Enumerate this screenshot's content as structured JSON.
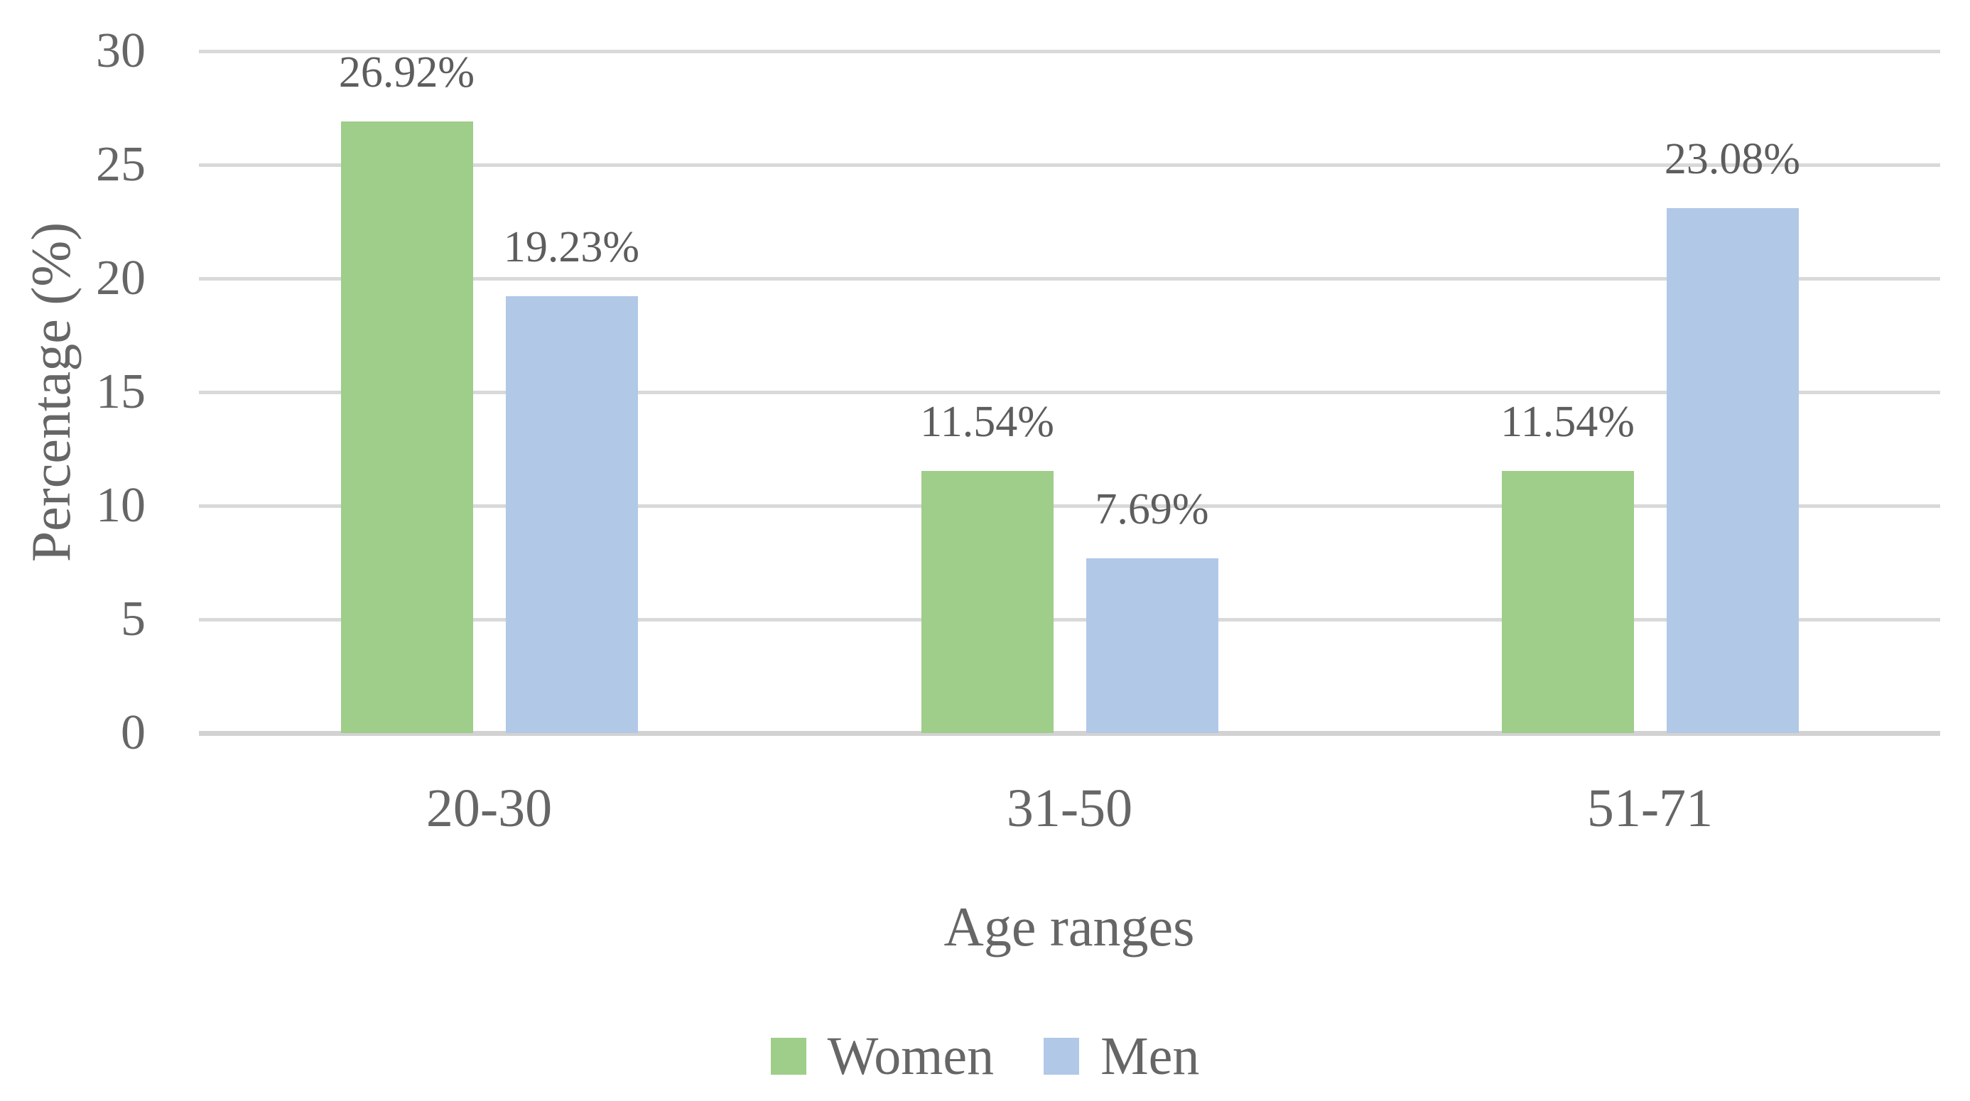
{
  "chart_data": {
    "type": "bar",
    "title": "",
    "xlabel": "Age ranges",
    "ylabel": "Percentage (%)",
    "categories": [
      "20-30",
      "31-50",
      "51-71"
    ],
    "series": [
      {
        "name": "Women",
        "color": "#9FCD8A",
        "values": [
          26.92,
          11.54,
          11.54
        ]
      },
      {
        "name": "Men",
        "color": "#B1C8E7",
        "values": [
          19.23,
          7.69,
          23.08
        ]
      }
    ],
    "data_labels": [
      [
        "26.92%",
        "11.54%",
        "11.54%"
      ],
      [
        "19.23%",
        "7.69%",
        "23.08%"
      ]
    ],
    "ylim": [
      0,
      30
    ],
    "yticks": [
      0,
      5,
      10,
      15,
      20,
      25,
      30
    ],
    "grid": true,
    "legend_position": "bottom-center",
    "colors": {
      "text": "#666666",
      "data_label_text": "#5d5d5d",
      "gridline": "#D9D9D9",
      "axis_line": "#D2D2D2",
      "background": "#FFFFFF"
    }
  }
}
